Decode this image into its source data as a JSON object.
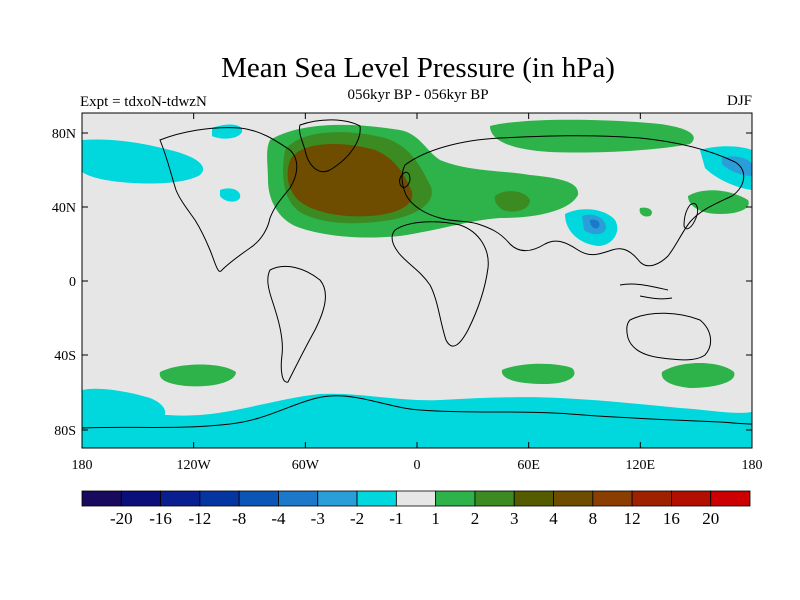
{
  "title": "Mean Sea Level Pressure (in hPa)",
  "subtitle": "056kyr BP - 056kyr BP",
  "left_label": "Expt = tdxoN-tdwzN",
  "right_label": "DJF",
  "lat_ticks": [
    "80N",
    "40N",
    "0",
    "40S",
    "80S"
  ],
  "lon_ticks": [
    "180",
    "120W",
    "60W",
    "0",
    "60E",
    "120E",
    "180"
  ],
  "colorbar": {
    "colors": [
      "#1a0a5e",
      "#0a0f7a",
      "#0a1f8f",
      "#0535a0",
      "#0a55b5",
      "#1c78c8",
      "#2a9ed8",
      "#00d8dd",
      "#e6e6e6",
      "#2db34a",
      "#3b8a22",
      "#555c00",
      "#6e4d00",
      "#8a3f00",
      "#9e2100",
      "#b30f00",
      "#cc0000"
    ],
    "labels": [
      "-20",
      "-16",
      "-12",
      "-8",
      "-4",
      "-3",
      "-2",
      "-1",
      "1",
      "2",
      "3",
      "4",
      "8",
      "12",
      "16",
      "20"
    ]
  },
  "colors": {
    "neutral": "#e6e6e6",
    "green": "#2db34a",
    "olive": "#3b8a22",
    "brown": "#6e4d00",
    "cyan": "#00d8dd",
    "blue": "#2a9ed8",
    "darkblue": "#1c78c8"
  }
}
